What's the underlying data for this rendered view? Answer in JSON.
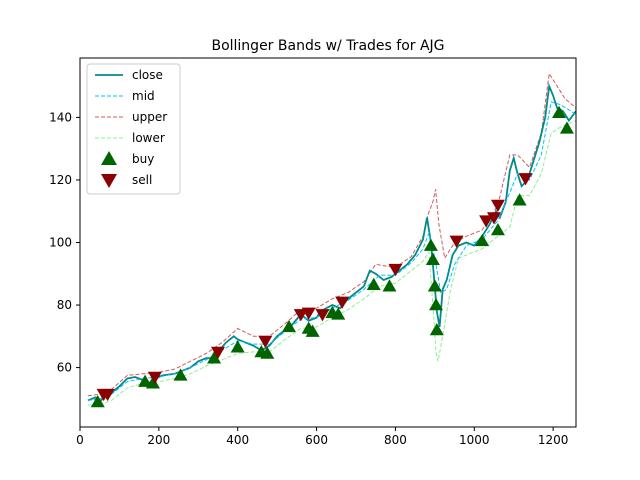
{
  "chart_data": {
    "type": "line",
    "title": "Bollinger Bands w/ Trades for AJG",
    "xlabel": "",
    "ylabel": "",
    "xlim": [
      0,
      1258
    ],
    "ylim": [
      41,
      159
    ],
    "xticks": [
      0,
      200,
      400,
      600,
      800,
      1000,
      1200
    ],
    "yticks": [
      60,
      80,
      100,
      120,
      140
    ],
    "grid": false,
    "legend_position": "upper-left",
    "colors": {
      "close": "#008b8b",
      "mid": "#00bfff",
      "upper": "#cd5c5c",
      "lower": "#90ee90",
      "buy": "#006400",
      "sell": "#8b0000"
    },
    "legend": [
      {
        "label": "close",
        "style": "solid"
      },
      {
        "label": "mid",
        "style": "dashed"
      },
      {
        "label": "upper",
        "style": "dashed"
      },
      {
        "label": "lower",
        "style": "dashed"
      },
      {
        "label": "buy",
        "style": "marker-up"
      },
      {
        "label": "sell",
        "style": "marker-down"
      }
    ],
    "close_points": [
      [
        20,
        49.5
      ],
      [
        40,
        50.5
      ],
      [
        50,
        49
      ],
      [
        60,
        50.5
      ],
      [
        80,
        52
      ],
      [
        100,
        54
      ],
      [
        120,
        56.5
      ],
      [
        140,
        57
      ],
      [
        160,
        56
      ],
      [
        180,
        55
      ],
      [
        190,
        56.5
      ],
      [
        210,
        57.5
      ],
      [
        240,
        58
      ],
      [
        260,
        59
      ],
      [
        280,
        60
      ],
      [
        300,
        62
      ],
      [
        320,
        63
      ],
      [
        335,
        63
      ],
      [
        350,
        65
      ],
      [
        370,
        68
      ],
      [
        390,
        70
      ],
      [
        400,
        69
      ],
      [
        420,
        68
      ],
      [
        440,
        67
      ],
      [
        460,
        65.5
      ],
      [
        480,
        67
      ],
      [
        500,
        70
      ],
      [
        520,
        72
      ],
      [
        540,
        74
      ],
      [
        560,
        77
      ],
      [
        580,
        75
      ],
      [
        600,
        76
      ],
      [
        610,
        78
      ],
      [
        640,
        80
      ],
      [
        660,
        79
      ],
      [
        680,
        82
      ],
      [
        700,
        84
      ],
      [
        720,
        86
      ],
      [
        735,
        91
      ],
      [
        750,
        90
      ],
      [
        770,
        88
      ],
      [
        790,
        89
      ],
      [
        810,
        91
      ],
      [
        830,
        93
      ],
      [
        850,
        96
      ],
      [
        870,
        101
      ],
      [
        880,
        108
      ],
      [
        890,
        100
      ],
      [
        895,
        93
      ],
      [
        900,
        86
      ],
      [
        905,
        78
      ],
      [
        912,
        73
      ],
      [
        920,
        85
      ],
      [
        930,
        88
      ],
      [
        945,
        96
      ],
      [
        960,
        99
      ],
      [
        980,
        100
      ],
      [
        1000,
        99
      ],
      [
        1020,
        102
      ],
      [
        1040,
        106
      ],
      [
        1055,
        110
      ],
      [
        1065,
        108
      ],
      [
        1080,
        113
      ],
      [
        1090,
        123
      ],
      [
        1100,
        127
      ],
      [
        1110,
        122
      ],
      [
        1120,
        118
      ],
      [
        1135,
        120
      ],
      [
        1150,
        126
      ],
      [
        1165,
        132
      ],
      [
        1180,
        140
      ],
      [
        1190,
        150
      ],
      [
        1200,
        147
      ],
      [
        1210,
        143
      ],
      [
        1225,
        142
      ],
      [
        1240,
        139
      ],
      [
        1258,
        142
      ]
    ],
    "mid_points": [
      [
        20,
        49.5
      ],
      [
        50,
        50
      ],
      [
        80,
        51.5
      ],
      [
        120,
        55.5
      ],
      [
        160,
        56.5
      ],
      [
        200,
        57
      ],
      [
        240,
        58
      ],
      [
        280,
        60
      ],
      [
        320,
        62.5
      ],
      [
        360,
        65.5
      ],
      [
        400,
        68.5
      ],
      [
        440,
        67.5
      ],
      [
        480,
        67.5
      ],
      [
        520,
        71.5
      ],
      [
        560,
        75.5
      ],
      [
        600,
        76
      ],
      [
        640,
        79
      ],
      [
        680,
        81.5
      ],
      [
        720,
        85
      ],
      [
        760,
        89.5
      ],
      [
        800,
        89.5
      ],
      [
        840,
        93.5
      ],
      [
        870,
        98
      ],
      [
        885,
        103
      ],
      [
        900,
        95
      ],
      [
        915,
        84
      ],
      [
        930,
        85
      ],
      [
        950,
        93
      ],
      [
        980,
        99
      ],
      [
        1020,
        101
      ],
      [
        1060,
        107
      ],
      [
        1090,
        116
      ],
      [
        1110,
        122
      ],
      [
        1140,
        120
      ],
      [
        1170,
        128
      ],
      [
        1195,
        145
      ],
      [
        1220,
        144
      ],
      [
        1258,
        141
      ]
    ],
    "upper_points": [
      [
        20,
        51
      ],
      [
        50,
        51.5
      ],
      [
        80,
        53
      ],
      [
        120,
        57.5
      ],
      [
        160,
        58
      ],
      [
        200,
        58.5
      ],
      [
        240,
        59.5
      ],
      [
        280,
        62
      ],
      [
        320,
        64.5
      ],
      [
        360,
        68
      ],
      [
        400,
        72.5
      ],
      [
        440,
        70
      ],
      [
        480,
        70
      ],
      [
        520,
        74
      ],
      [
        560,
        78.5
      ],
      [
        600,
        79
      ],
      [
        640,
        82
      ],
      [
        680,
        84
      ],
      [
        720,
        87.5
      ],
      [
        750,
        93
      ],
      [
        800,
        92
      ],
      [
        840,
        95.5
      ],
      [
        870,
        102
      ],
      [
        883,
        109
      ],
      [
        895,
        113
      ],
      [
        902,
        117
      ],
      [
        910,
        106
      ],
      [
        925,
        95
      ],
      [
        950,
        100
      ],
      [
        980,
        102
      ],
      [
        1020,
        104
      ],
      [
        1060,
        112
      ],
      [
        1090,
        128
      ],
      [
        1110,
        128
      ],
      [
        1140,
        124
      ],
      [
        1170,
        135
      ],
      [
        1190,
        154
      ],
      [
        1210,
        150
      ],
      [
        1230,
        146
      ],
      [
        1258,
        143
      ]
    ],
    "lower_points": [
      [
        20,
        48
      ],
      [
        50,
        48
      ],
      [
        80,
        49.5
      ],
      [
        120,
        53.5
      ],
      [
        160,
        55
      ],
      [
        200,
        55.5
      ],
      [
        240,
        56.5
      ],
      [
        280,
        58
      ],
      [
        320,
        60.5
      ],
      [
        360,
        62.5
      ],
      [
        400,
        64.5
      ],
      [
        440,
        65
      ],
      [
        480,
        65
      ],
      [
        520,
        69
      ],
      [
        560,
        72.5
      ],
      [
        600,
        73
      ],
      [
        640,
        76
      ],
      [
        680,
        78.5
      ],
      [
        720,
        82
      ],
      [
        760,
        86
      ],
      [
        800,
        87
      ],
      [
        840,
        91
      ],
      [
        870,
        94
      ],
      [
        885,
        97
      ],
      [
        895,
        80
      ],
      [
        903,
        65
      ],
      [
        908,
        62
      ],
      [
        920,
        70
      ],
      [
        940,
        85
      ],
      [
        960,
        95
      ],
      [
        980,
        96
      ],
      [
        1020,
        98
      ],
      [
        1060,
        102
      ],
      [
        1090,
        105
      ],
      [
        1110,
        115
      ],
      [
        1140,
        115
      ],
      [
        1170,
        122
      ],
      [
        1195,
        135
      ],
      [
        1220,
        137
      ],
      [
        1258,
        139
      ]
    ],
    "buy": [
      [
        45,
        49
      ],
      [
        165,
        55.5
      ],
      [
        185,
        55
      ],
      [
        255,
        57.5
      ],
      [
        340,
        63
      ],
      [
        400,
        66.5
      ],
      [
        460,
        65
      ],
      [
        475,
        64.5
      ],
      [
        530,
        73
      ],
      [
        580,
        72.5
      ],
      [
        590,
        71.5
      ],
      [
        640,
        77.5
      ],
      [
        655,
        77
      ],
      [
        745,
        86.5
      ],
      [
        785,
        86
      ],
      [
        890,
        99
      ],
      [
        895,
        94.5
      ],
      [
        900,
        86
      ],
      [
        903,
        80
      ],
      [
        905,
        72
      ],
      [
        1020,
        100.5
      ],
      [
        1060,
        104
      ],
      [
        1115,
        113.5
      ],
      [
        1215,
        141.5
      ],
      [
        1235,
        136.5
      ]
    ],
    "sell": [
      [
        60,
        51.5
      ],
      [
        70,
        51.5
      ],
      [
        190,
        57
      ],
      [
        350,
        65
      ],
      [
        470,
        68.5
      ],
      [
        560,
        77
      ],
      [
        580,
        77.5
      ],
      [
        615,
        77
      ],
      [
        665,
        81
      ],
      [
        800,
        91.5
      ],
      [
        955,
        100.5
      ],
      [
        1030,
        107
      ],
      [
        1050,
        108
      ],
      [
        1060,
        112
      ],
      [
        1130,
        120.5
      ]
    ]
  }
}
